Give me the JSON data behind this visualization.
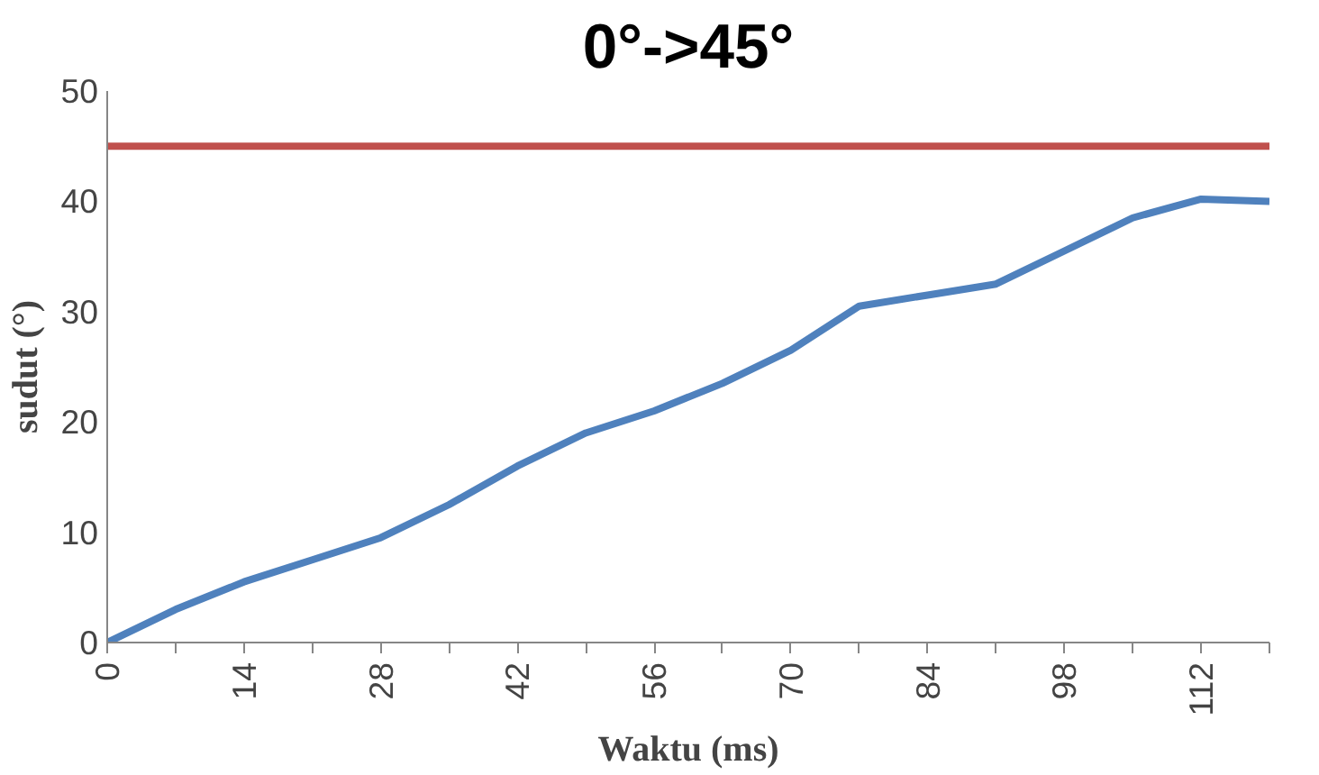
{
  "chart_data": {
    "type": "line",
    "title": "0°->45°",
    "xlabel": "Waktu (ms)",
    "ylabel": "sudut (°)",
    "x": [
      0,
      7,
      14,
      21,
      28,
      35,
      42,
      49,
      56,
      63,
      70,
      77,
      84,
      91,
      98,
      105,
      112,
      119
    ],
    "series": [
      {
        "color": "#4f81bd",
        "values": [
          0,
          3,
          5.5,
          7.5,
          9.5,
          12.5,
          16,
          19,
          21,
          23.5,
          26.5,
          30.5,
          31.5,
          32.5,
          35.5,
          38.5,
          40.2,
          40
        ]
      },
      {
        "color": "#c0504d",
        "values": [
          45,
          45,
          45,
          45,
          45,
          45,
          45,
          45,
          45,
          45,
          45,
          45,
          45,
          45,
          45,
          45,
          45,
          45
        ]
      }
    ],
    "xlim": [
      0,
      119
    ],
    "ylim": [
      0,
      50
    ],
    "xticks": [
      0,
      {
        "value": 7,
        "label": null
      },
      14,
      {
        "value": 21,
        "label": null
      },
      28,
      {
        "value": 35,
        "label": null
      },
      42,
      {
        "value": 49,
        "label": null
      },
      56,
      {
        "value": 63,
        "label": null
      },
      70,
      {
        "value": 77,
        "label": null
      },
      84,
      {
        "value": 91,
        "label": null
      },
      98,
      {
        "value": 105,
        "label": null
      },
      112,
      {
        "value": 119,
        "label": null
      }
    ],
    "yticks": [
      0,
      10,
      20,
      30,
      40,
      50
    ],
    "grid": false,
    "marker": "none",
    "line_style": "solid"
  }
}
